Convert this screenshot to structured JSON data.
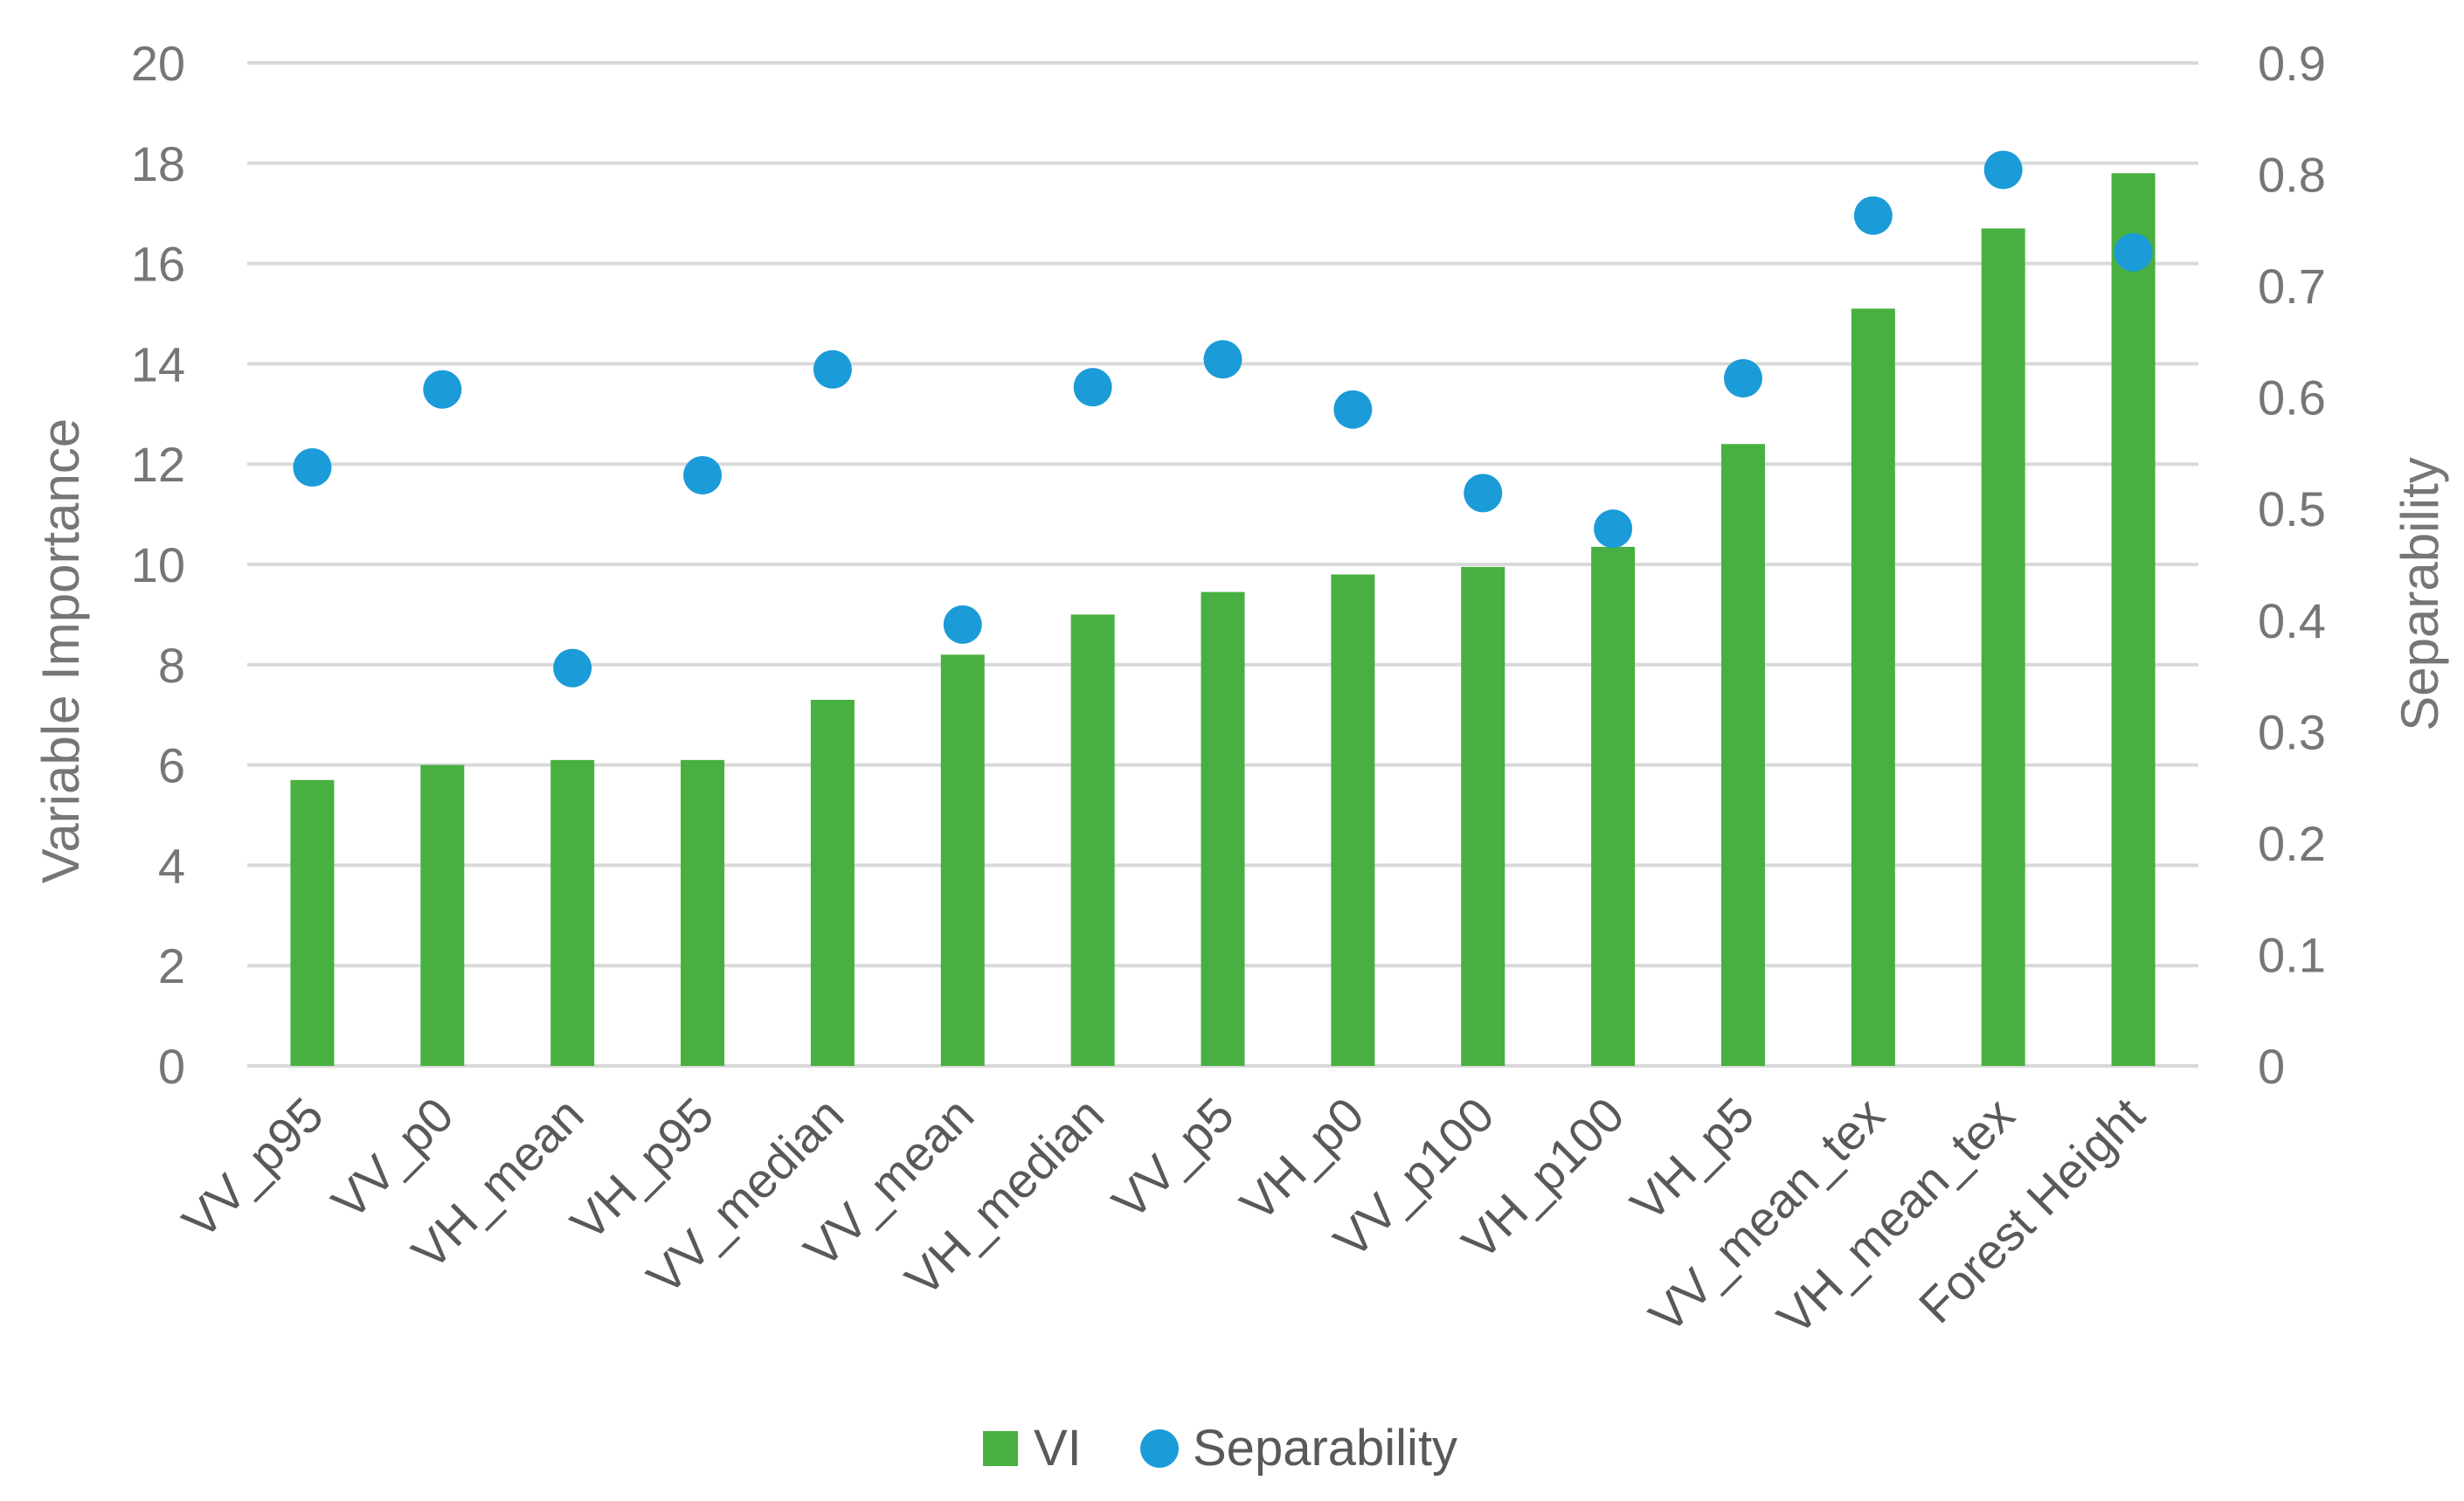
{
  "chart_data": {
    "type": "bar",
    "title": "",
    "categories": [
      "VV_p95",
      "VV_p0",
      "VH_mean",
      "VH_p95",
      "VV_median",
      "VV_mean",
      "VH_median",
      "VV_p5",
      "VH_p0",
      "VV_p100",
      "VH_p100",
      "VH_p5",
      "VV_mean_tex",
      "VH_mean_tex",
      "Forest Height"
    ],
    "series": [
      {
        "name": "VI",
        "kind": "bar",
        "axis": "left",
        "color": "#48b040",
        "values": [
          5.7,
          6.0,
          6.1,
          6.1,
          7.3,
          8.2,
          9.0,
          9.45,
          9.8,
          9.95,
          10.35,
          12.4,
          15.1,
          16.7,
          17.8
        ]
      },
      {
        "name": "Separability",
        "kind": "scatter",
        "axis": "right",
        "color": "#1b9bd8",
        "values": [
          0.537,
          0.607,
          0.357,
          0.53,
          0.625,
          0.396,
          0.609,
          0.634,
          0.589,
          0.514,
          0.482,
          0.617,
          0.763,
          0.804,
          0.73
        ]
      }
    ],
    "ylabel": "Variable Importance",
    "y2label": "Separability",
    "ylim": [
      0,
      20
    ],
    "y2lim": [
      0,
      0.9
    ],
    "yticks": [
      "0",
      "2",
      "4",
      "6",
      "8",
      "10",
      "12",
      "14",
      "16",
      "18",
      "20"
    ],
    "y2ticks": [
      "0",
      "0.1",
      "0.2",
      "0.3",
      "0.4",
      "0.5",
      "0.6",
      "0.7",
      "0.8",
      "0.9"
    ],
    "grid": true,
    "legend": "bottom-center",
    "gridColor": "#d9d9d9"
  }
}
